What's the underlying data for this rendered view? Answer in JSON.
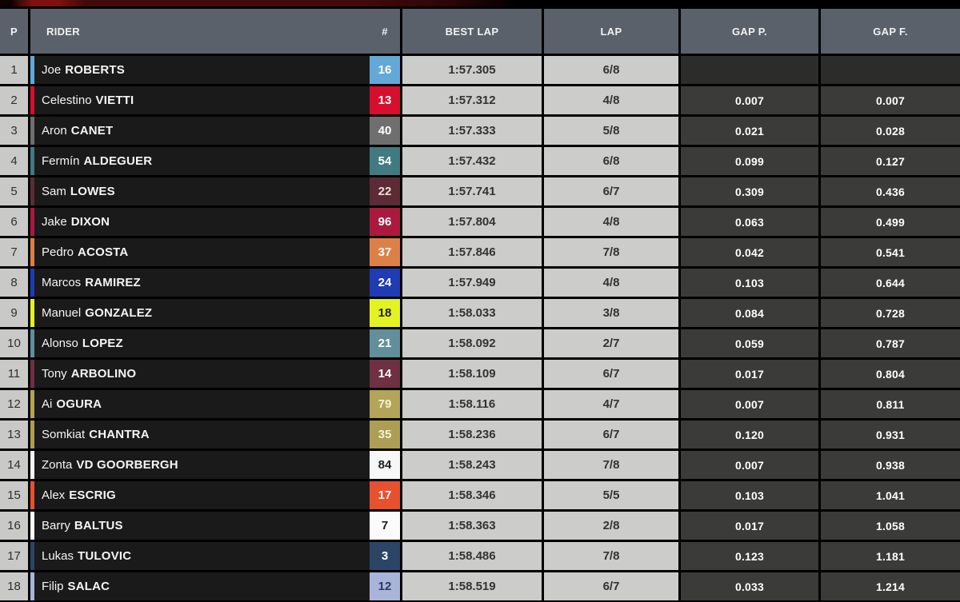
{
  "table": {
    "headers": {
      "p": "P",
      "rider": "RIDER",
      "num": "#",
      "best_lap": "BEST LAP",
      "lap": "LAP",
      "gap_p": "GAP P.",
      "gap_f": "GAP F."
    },
    "colors": {
      "header_bg": "#5a616b",
      "position_bg": "#c9c9c7",
      "rider_bg": "#1a1a1a",
      "time_bg": "#cccccb",
      "gap_bg": "#3b3b39",
      "top_accent": "#7e1212"
    },
    "rows": [
      {
        "pos": "1",
        "first": "Joe",
        "last": "ROBERTS",
        "num": "16",
        "color": "#64a8d8",
        "num_fg": "#ffffff",
        "best": "1:57.305",
        "lap": "6/8",
        "gap_p": "",
        "gap_f": ""
      },
      {
        "pos": "2",
        "first": "Celestino",
        "last": "VIETTI",
        "num": "13",
        "color": "#d60f2e",
        "num_fg": "#ffffff",
        "best": "1:57.312",
        "lap": "4/8",
        "gap_p": "0.007",
        "gap_f": "0.007"
      },
      {
        "pos": "3",
        "first": "Aron",
        "last": "CANET",
        "num": "40",
        "color": "#6f6f6f",
        "num_fg": "#ffffff",
        "best": "1:57.333",
        "lap": "5/8",
        "gap_p": "0.021",
        "gap_f": "0.028"
      },
      {
        "pos": "4",
        "first": "Fermín",
        "last": "ALDEGUER",
        "num": "54",
        "color": "#417a80",
        "num_fg": "#ffffff",
        "best": "1:57.432",
        "lap": "6/8",
        "gap_p": "0.099",
        "gap_f": "0.127"
      },
      {
        "pos": "5",
        "first": "Sam",
        "last": "LOWES",
        "num": "22",
        "color": "#5c2b35",
        "num_fg": "#f0dada",
        "best": "1:57.741",
        "lap": "6/7",
        "gap_p": "0.309",
        "gap_f": "0.436"
      },
      {
        "pos": "6",
        "first": "Jake",
        "last": "DIXON",
        "num": "96",
        "color": "#ab1a3e",
        "num_fg": "#ffffff",
        "best": "1:57.804",
        "lap": "4/8",
        "gap_p": "0.063",
        "gap_f": "0.499"
      },
      {
        "pos": "7",
        "first": "Pedro",
        "last": "ACOSTA",
        "num": "37",
        "color": "#dd8048",
        "num_fg": "#ffffff",
        "best": "1:57.846",
        "lap": "7/8",
        "gap_p": "0.042",
        "gap_f": "0.541"
      },
      {
        "pos": "8",
        "first": "Marcos",
        "last": "RAMIREZ",
        "num": "24",
        "color": "#1f3cb2",
        "num_fg": "#ffffff",
        "best": "1:57.949",
        "lap": "4/8",
        "gap_p": "0.103",
        "gap_f": "0.644"
      },
      {
        "pos": "9",
        "first": "Manuel",
        "last": "GONZALEZ",
        "num": "18",
        "color": "#e2f223",
        "num_fg": "#1e1e1e",
        "best": "1:58.033",
        "lap": "3/8",
        "gap_p": "0.084",
        "gap_f": "0.728"
      },
      {
        "pos": "10",
        "first": "Alonso",
        "last": "LOPEZ",
        "num": "21",
        "color": "#628f99",
        "num_fg": "#ffffff",
        "best": "1:58.092",
        "lap": "2/7",
        "gap_p": "0.059",
        "gap_f": "0.787"
      },
      {
        "pos": "11",
        "first": "Tony",
        "last": "ARBOLINO",
        "num": "14",
        "color": "#6e3042",
        "num_fg": "#ffffff",
        "best": "1:58.109",
        "lap": "6/7",
        "gap_p": "0.017",
        "gap_f": "0.804"
      },
      {
        "pos": "12",
        "first": "Ai",
        "last": "OGURA",
        "num": "79",
        "color": "#b2a458",
        "num_fg": "#f7f2cf",
        "best": "1:58.116",
        "lap": "4/7",
        "gap_p": "0.007",
        "gap_f": "0.811"
      },
      {
        "pos": "13",
        "first": "Somkiat",
        "last": "CHANTRA",
        "num": "35",
        "color": "#ac9f55",
        "num_fg": "#f7f2cf",
        "best": "1:58.236",
        "lap": "6/7",
        "gap_p": "0.120",
        "gap_f": "0.931"
      },
      {
        "pos": "14",
        "first": "Zonta",
        "last": "VD GOORBERGH",
        "num": "84",
        "color": "#f7f7f7",
        "num_fg": "#1e1e1e",
        "best": "1:58.243",
        "lap": "7/8",
        "gap_p": "0.007",
        "gap_f": "0.938"
      },
      {
        "pos": "15",
        "first": "Alex",
        "last": "ESCRIG",
        "num": "17",
        "color": "#e8512e",
        "num_fg": "#ffffff",
        "best": "1:58.346",
        "lap": "5/5",
        "gap_p": "0.103",
        "gap_f": "1.041"
      },
      {
        "pos": "16",
        "first": "Barry",
        "last": "BALTUS",
        "num": "7",
        "color": "#fbfbfb",
        "num_fg": "#1e1e1e",
        "best": "1:58.363",
        "lap": "2/8",
        "gap_p": "0.017",
        "gap_f": "1.058"
      },
      {
        "pos": "17",
        "first": "Lukas",
        "last": "TULOVIC",
        "num": "3",
        "color": "#2c4566",
        "num_fg": "#ffffff",
        "best": "1:58.486",
        "lap": "7/8",
        "gap_p": "0.123",
        "gap_f": "1.181"
      },
      {
        "pos": "18",
        "first": "Filip",
        "last": "SALAC",
        "num": "12",
        "color": "#a9b4d9",
        "num_fg": "#2a3a66",
        "best": "1:58.519",
        "lap": "6/7",
        "gap_p": "0.033",
        "gap_f": "1.214"
      }
    ]
  }
}
